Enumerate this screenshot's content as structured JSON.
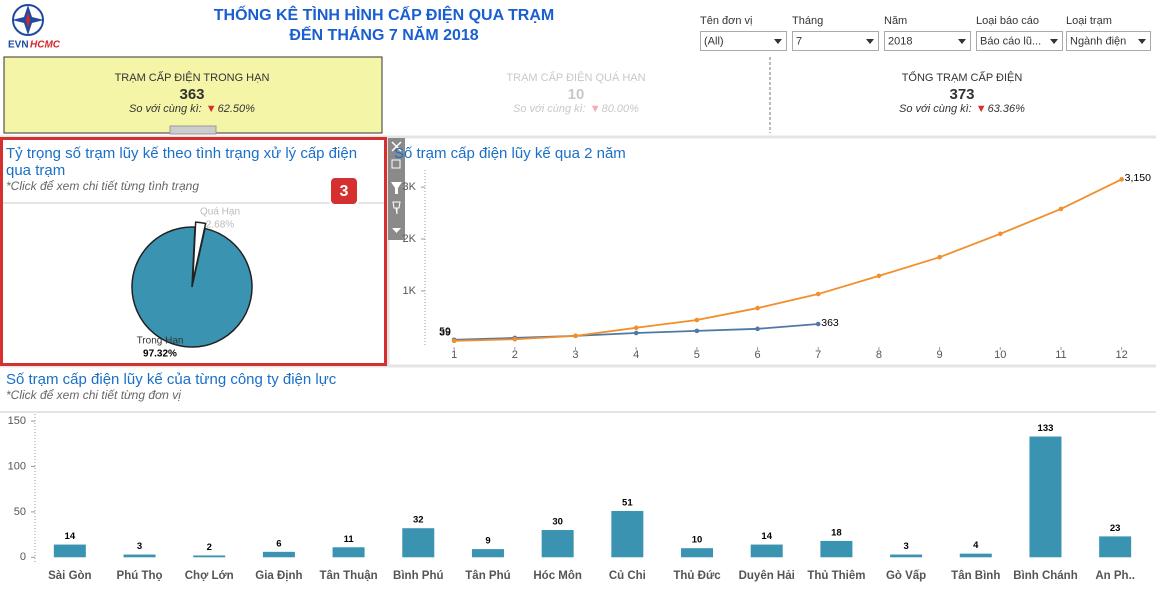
{
  "header": {
    "logo_main": "EVN",
    "logo_accent": "HCMC",
    "title_line1": "THỐNG KÊ TÌNH HÌNH CẤP ĐIỆN QUA TRẠM",
    "title_line2": "ĐẾN THÁNG 7 NĂM 2018"
  },
  "filters": [
    {
      "label": "Tên đơn vị",
      "value": "(All)"
    },
    {
      "label": "Tháng",
      "value": "7"
    },
    {
      "label": "Năm",
      "value": "2018"
    },
    {
      "label": "Loại báo cáo",
      "value": "Báo cáo lũ..."
    },
    {
      "label": "Loại trạm",
      "value": "Ngành điện"
    }
  ],
  "kpis": [
    {
      "title": "TRẠM CẤP ĐIỆN TRONG HẠN",
      "value": "363",
      "compare_label": "So với cùng kì:",
      "arrow": "▼",
      "change": "62.50%"
    },
    {
      "title": "TRẠM CẤP ĐIỆN QUÁ HẠN",
      "value": "10",
      "compare_label": "So với cùng kì:",
      "arrow": "▼",
      "change": "80.00%"
    },
    {
      "title": "TỔNG TRẠM CẤP ĐIỆN",
      "value": "373",
      "compare_label": "So với cùng kì:",
      "arrow": "▼",
      "change": "63.36%"
    }
  ],
  "pie_panel": {
    "title_line1": "Tỷ trọng số trạm lũy kế theo tình trạng xử lý cấp điện",
    "title_line2": "qua trạm",
    "subtitle": "*Click để xem chi tiết từng tình trạng",
    "badge": "3",
    "chart_data": {
      "type": "pie",
      "categories": [
        "Quá Hạn",
        "Trong Hạn"
      ],
      "values": [
        2.68,
        97.32
      ],
      "value_labels": [
        "2.68%",
        "97.32%"
      ],
      "colors": [
        "#ffffff",
        "#3a93b0"
      ]
    }
  },
  "line_panel": {
    "title": "Số trạm cấp điện lũy kế qua 2 năm",
    "chart_data": {
      "type": "line",
      "x": [
        1,
        2,
        3,
        4,
        5,
        6,
        7,
        8,
        9,
        10,
        11,
        12
      ],
      "series": [
        {
          "color": "#4e79a7",
          "values": [
            59,
            95,
            135,
            190,
            230,
            270,
            363,
            null,
            null,
            null,
            null,
            null
          ],
          "value_labels": [
            "59",
            null,
            null,
            null,
            null,
            null,
            "363",
            null,
            null,
            null,
            null,
            null
          ]
        },
        {
          "color": "#f28e2b",
          "values": [
            39,
            70,
            135,
            290,
            440,
            670,
            940,
            1290,
            1650,
            2100,
            2580,
            3150
          ],
          "value_labels": [
            "39",
            null,
            null,
            null,
            null,
            null,
            null,
            null,
            null,
            null,
            null,
            "3,150"
          ]
        }
      ],
      "xlim": [
        0.52,
        12.5
      ],
      "xticks": [
        1,
        2,
        3,
        4,
        5,
        6,
        7,
        8,
        9,
        10,
        11,
        12
      ],
      "ylim": [
        -80,
        3330
      ],
      "yticks": [
        {
          "value": 1000,
          "label": "1K"
        },
        {
          "value": 2000,
          "label": "2K"
        },
        {
          "value": 3000,
          "label": "3K"
        }
      ]
    }
  },
  "bar_panel": {
    "title": "Số trạm cấp điện lũy kế của từng công ty điện lực",
    "subtitle": "*Click để xem chi tiết từng đơn vị",
    "chart_data": {
      "type": "bar",
      "categories": [
        "Sài Gòn",
        "Phú Thọ",
        "Chợ Lớn",
        "Gia Định",
        "Tân Thuận",
        "Bình Phú",
        "Tân Phú",
        "Hóc Môn",
        "Củ Chi",
        "Thủ Đức",
        "Duyên Hải",
        "Thủ Thiêm",
        "Gò Vấp",
        "Tân Bình",
        "Bình Chánh",
        "An Ph.."
      ],
      "values": [
        14,
        3,
        2,
        6,
        11,
        32,
        9,
        30,
        51,
        10,
        14,
        18,
        3,
        4,
        133,
        23
      ],
      "color": "#3a93b0",
      "ylim": [
        -3,
        160
      ],
      "yticks": [
        0,
        50,
        100,
        150
      ]
    }
  }
}
